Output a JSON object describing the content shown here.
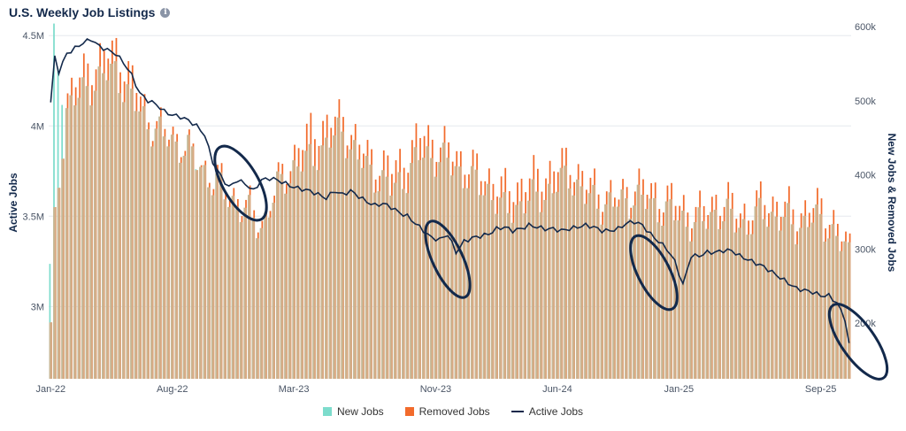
{
  "header": {
    "title": "U.S. Weekly Job Listings",
    "info_glyph": "i",
    "info_icon": "info-icon"
  },
  "legend": [
    {
      "label": "New Jobs",
      "color": "#7ddccc"
    },
    {
      "label": "Removed Jobs",
      "color": "#f26b2c"
    },
    {
      "label": "Active Jobs",
      "color": "#13294b"
    }
  ],
  "chart_data": {
    "type": "bar",
    "left_axis": {
      "label": "Active Jobs",
      "ticks": [
        "4.5M",
        "4M",
        "3.5M",
        "3M"
      ],
      "tick_values": [
        4500000,
        4000000,
        3500000,
        3000000
      ],
      "range": [
        2600000,
        4550000
      ]
    },
    "right_axis": {
      "label": "New Jobs & Removed Jobs",
      "ticks": [
        "600k",
        "500k",
        "400k",
        "300k",
        "200k"
      ],
      "tick_values": [
        600000,
        500000,
        400000,
        300000,
        200000
      ],
      "range": [
        125000,
        600000
      ]
    },
    "x_ticks": [
      "Jan-22",
      "Aug-22",
      "Mar-23",
      "Nov-23",
      "Jun-24",
      "Jan-25",
      "Sep-25"
    ],
    "x_tick_week_index": [
      0,
      30,
      60,
      95,
      125,
      155,
      190
    ],
    "weeks": 198,
    "new_jobs_approx_k": [
      [
        0,
        270
      ],
      [
        1,
        580
      ],
      [
        4,
        490
      ],
      [
        8,
        510
      ],
      [
        12,
        530
      ],
      [
        16,
        540
      ],
      [
        20,
        500
      ],
      [
        24,
        470
      ],
      [
        28,
        450
      ],
      [
        32,
        440
      ],
      [
        36,
        420
      ],
      [
        40,
        390
      ],
      [
        44,
        370
      ],
      [
        48,
        350
      ],
      [
        52,
        330
      ],
      [
        56,
        380
      ],
      [
        60,
        410
      ],
      [
        64,
        420
      ],
      [
        68,
        440
      ],
      [
        72,
        460
      ],
      [
        76,
        420
      ],
      [
        80,
        400
      ],
      [
        84,
        380
      ],
      [
        88,
        400
      ],
      [
        92,
        430
      ],
      [
        96,
        420
      ],
      [
        100,
        410
      ],
      [
        104,
        390
      ],
      [
        108,
        380
      ],
      [
        112,
        350
      ],
      [
        116,
        360
      ],
      [
        120,
        370
      ],
      [
        124,
        380
      ],
      [
        128,
        400
      ],
      [
        132,
        370
      ],
      [
        136,
        360
      ],
      [
        140,
        360
      ],
      [
        144,
        370
      ],
      [
        148,
        360
      ],
      [
        152,
        350
      ],
      [
        156,
        340
      ],
      [
        160,
        330
      ],
      [
        164,
        350
      ],
      [
        168,
        340
      ],
      [
        172,
        330
      ],
      [
        176,
        350
      ],
      [
        180,
        340
      ],
      [
        184,
        330
      ],
      [
        188,
        340
      ],
      [
        192,
        330
      ],
      [
        197,
        290
      ]
    ],
    "removed_jobs_approx_k": [
      [
        0,
        190
      ],
      [
        1,
        330
      ],
      [
        4,
        510
      ],
      [
        8,
        540
      ],
      [
        12,
        560
      ],
      [
        16,
        570
      ],
      [
        20,
        530
      ],
      [
        24,
        480
      ],
      [
        28,
        460
      ],
      [
        32,
        450
      ],
      [
        36,
        420
      ],
      [
        40,
        400
      ],
      [
        44,
        380
      ],
      [
        48,
        360
      ],
      [
        52,
        340
      ],
      [
        56,
        390
      ],
      [
        60,
        430
      ],
      [
        64,
        460
      ],
      [
        68,
        470
      ],
      [
        72,
        480
      ],
      [
        76,
        440
      ],
      [
        80,
        420
      ],
      [
        84,
        410
      ],
      [
        88,
        430
      ],
      [
        92,
        460
      ],
      [
        96,
        440
      ],
      [
        100,
        430
      ],
      [
        104,
        410
      ],
      [
        108,
        400
      ],
      [
        112,
        380
      ],
      [
        116,
        390
      ],
      [
        120,
        400
      ],
      [
        124,
        410
      ],
      [
        128,
        420
      ],
      [
        132,
        390
      ],
      [
        136,
        380
      ],
      [
        140,
        370
      ],
      [
        144,
        390
      ],
      [
        148,
        380
      ],
      [
        152,
        370
      ],
      [
        156,
        360
      ],
      [
        160,
        350
      ],
      [
        164,
        370
      ],
      [
        168,
        360
      ],
      [
        172,
        350
      ],
      [
        176,
        370
      ],
      [
        180,
        360
      ],
      [
        184,
        350
      ],
      [
        188,
        360
      ],
      [
        192,
        350
      ],
      [
        197,
        300
      ]
    ],
    "active_jobs_approx_m": [
      [
        0,
        4.13
      ],
      [
        1,
        4.38
      ],
      [
        2,
        4.3
      ],
      [
        4,
        4.4
      ],
      [
        6,
        4.43
      ],
      [
        8,
        4.46
      ],
      [
        10,
        4.48
      ],
      [
        12,
        4.44
      ],
      [
        14,
        4.42
      ],
      [
        16,
        4.4
      ],
      [
        18,
        4.35
      ],
      [
        20,
        4.28
      ],
      [
        22,
        4.18
      ],
      [
        24,
        4.14
      ],
      [
        26,
        4.12
      ],
      [
        28,
        4.08
      ],
      [
        30,
        4.06
      ],
      [
        32,
        4.05
      ],
      [
        34,
        4.03
      ],
      [
        36,
        4.0
      ],
      [
        38,
        3.95
      ],
      [
        40,
        3.8
      ],
      [
        42,
        3.72
      ],
      [
        44,
        3.66
      ],
      [
        46,
        3.7
      ],
      [
        48,
        3.68
      ],
      [
        50,
        3.64
      ],
      [
        52,
        3.7
      ],
      [
        54,
        3.71
      ],
      [
        56,
        3.7
      ],
      [
        58,
        3.68
      ],
      [
        60,
        3.66
      ],
      [
        62,
        3.65
      ],
      [
        64,
        3.64
      ],
      [
        66,
        3.62
      ],
      [
        68,
        3.6
      ],
      [
        70,
        3.64
      ],
      [
        72,
        3.62
      ],
      [
        74,
        3.64
      ],
      [
        76,
        3.61
      ],
      [
        78,
        3.58
      ],
      [
        80,
        3.56
      ],
      [
        82,
        3.57
      ],
      [
        84,
        3.55
      ],
      [
        86,
        3.52
      ],
      [
        88,
        3.5
      ],
      [
        90,
        3.46
      ],
      [
        92,
        3.42
      ],
      [
        94,
        3.38
      ],
      [
        96,
        3.37
      ],
      [
        98,
        3.4
      ],
      [
        100,
        3.3
      ],
      [
        102,
        3.36
      ],
      [
        104,
        3.38
      ],
      [
        106,
        3.39
      ],
      [
        108,
        3.4
      ],
      [
        110,
        3.43
      ],
      [
        112,
        3.44
      ],
      [
        114,
        3.42
      ],
      [
        116,
        3.43
      ],
      [
        118,
        3.45
      ],
      [
        120,
        3.44
      ],
      [
        122,
        3.43
      ],
      [
        124,
        3.43
      ],
      [
        126,
        3.42
      ],
      [
        128,
        3.43
      ],
      [
        130,
        3.44
      ],
      [
        132,
        3.45
      ],
      [
        134,
        3.44
      ],
      [
        136,
        3.42
      ],
      [
        138,
        3.42
      ],
      [
        140,
        3.43
      ],
      [
        142,
        3.46
      ],
      [
        144,
        3.47
      ],
      [
        146,
        3.45
      ],
      [
        148,
        3.4
      ],
      [
        150,
        3.36
      ],
      [
        152,
        3.32
      ],
      [
        154,
        3.25
      ],
      [
        156,
        3.12
      ],
      [
        158,
        3.28
      ],
      [
        160,
        3.28
      ],
      [
        162,
        3.3
      ],
      [
        164,
        3.3
      ],
      [
        166,
        3.31
      ],
      [
        168,
        3.31
      ],
      [
        170,
        3.28
      ],
      [
        172,
        3.26
      ],
      [
        174,
        3.24
      ],
      [
        176,
        3.22
      ],
      [
        178,
        3.19
      ],
      [
        180,
        3.16
      ],
      [
        182,
        3.13
      ],
      [
        184,
        3.1
      ],
      [
        186,
        3.09
      ],
      [
        188,
        3.08
      ],
      [
        190,
        3.06
      ],
      [
        192,
        3.06
      ],
      [
        194,
        3.02
      ],
      [
        196,
        2.93
      ],
      [
        197,
        2.79
      ]
    ],
    "grid": true,
    "legend_position": "bottom",
    "annotations": [
      {
        "shape": "ellipse",
        "color": "#13294b",
        "around_week": 44
      },
      {
        "shape": "ellipse",
        "color": "#13294b",
        "around_week": 99
      },
      {
        "shape": "ellipse",
        "color": "#13294b",
        "around_week": 149
      },
      {
        "shape": "ellipse",
        "color": "#13294b",
        "around_week": 195
      }
    ]
  }
}
